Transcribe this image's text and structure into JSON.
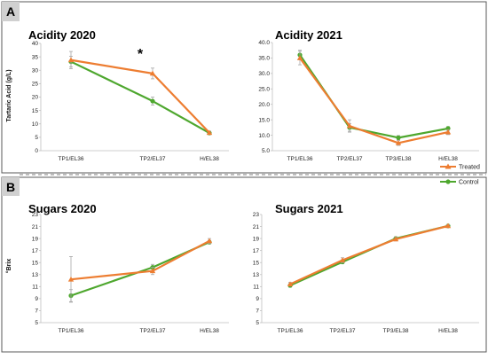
{
  "panels": {
    "a_label": "A",
    "b_label": "B"
  },
  "shared": {
    "acid_ylabel": "Tartaric Acid (g/L)",
    "sugar_ylabel": "°Brix"
  },
  "legend": {
    "treated": "Treated",
    "control": "Control"
  },
  "colors": {
    "treated": "#ED7D31",
    "control": "#4EA72E",
    "error_bar": "#A6A6A6",
    "panel_box": "#595959",
    "divider": "#7F7F7F",
    "axis": "#BFBFBF"
  },
  "chart_data": [
    {
      "type": "line",
      "title": "Acidity 2020",
      "categories": [
        "TP1/EL36",
        "TP2/EL37",
        "H/EL38"
      ],
      "ylim": [
        0,
        40
      ],
      "yticks": [
        "0",
        "5",
        "10",
        "15",
        "20",
        "25",
        "30",
        "35",
        "40"
      ],
      "ylabel": "Tartaric Acid (g/L)",
      "annotation": "*",
      "series": [
        {
          "name": "Treated",
          "values": [
            33.8,
            28.8,
            6.7
          ],
          "errors": [
            3.2,
            2.0,
            0.6
          ]
        },
        {
          "name": "Control",
          "values": [
            33.2,
            18.5,
            6.6
          ],
          "errors": [
            2.0,
            1.5,
            0.6
          ]
        }
      ]
    },
    {
      "type": "line",
      "title": "Acidity 2021",
      "categories": [
        "TP1/EL36",
        "TP2/EL37",
        "TP3/EL38",
        "H/EL38"
      ],
      "ylim": [
        5,
        40
      ],
      "yticks": [
        "5.0",
        "10.0",
        "15.0",
        "20.0",
        "25.0",
        "30.0",
        "35.0",
        "40.0"
      ],
      "series": [
        {
          "name": "Treated",
          "values": [
            35.0,
            13.0,
            7.5,
            11.0
          ],
          "errors": [
            2.2,
            2.0,
            0.8,
            0.8
          ]
        },
        {
          "name": "Control",
          "values": [
            36.0,
            12.5,
            9.2,
            12.2
          ],
          "errors": [
            1.5,
            1.2,
            0.7,
            0.6
          ]
        }
      ]
    },
    {
      "type": "line",
      "title": "Sugars 2020",
      "categories": [
        "TP1/EL36",
        "TP2/EL37",
        "H/EL38"
      ],
      "ylim": [
        5,
        23
      ],
      "yticks": [
        "5",
        "7",
        "9",
        "11",
        "13",
        "15",
        "17",
        "19",
        "21",
        "23"
      ],
      "ylabel": "°Brix",
      "series": [
        {
          "name": "Treated",
          "values": [
            12.2,
            13.6,
            18.6
          ],
          "errors": [
            3.8,
            0.6,
            0.4
          ]
        },
        {
          "name": "Control",
          "values": [
            9.5,
            14.2,
            18.4
          ],
          "errors": [
            1.0,
            0.5,
            0.3
          ]
        }
      ]
    },
    {
      "type": "line",
      "title": "Sugars 2021",
      "categories": [
        "TP1/EL36",
        "TP2/EL37",
        "TP3/EL38",
        "H/EL38"
      ],
      "ylim": [
        5,
        23
      ],
      "yticks": [
        "5",
        "7",
        "9",
        "11",
        "13",
        "15",
        "17",
        "19",
        "21",
        "23"
      ],
      "series": [
        {
          "name": "Treated",
          "values": [
            11.4,
            15.4,
            18.9,
            21.1
          ],
          "errors": [
            0.3,
            0.4,
            0.3,
            0.2
          ]
        },
        {
          "name": "Control",
          "values": [
            11.2,
            15.1,
            19.0,
            21.1
          ],
          "errors": [
            0.3,
            0.3,
            0.3,
            0.2
          ]
        }
      ]
    }
  ]
}
